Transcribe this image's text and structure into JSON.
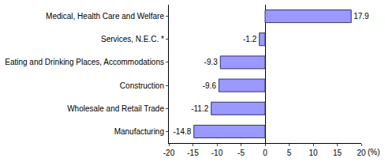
{
  "chart_data": {
    "type": "bar",
    "orientation": "horizontal",
    "categories": [
      "Medical, Health Care and Welfare",
      "Services, N.E.C. *",
      "Eating and Drinking Places, Accommodations",
      "Construction",
      "Wholesale and Retail Trade",
      "Manufacturing"
    ],
    "values": [
      17.9,
      -1.2,
      -9.3,
      -9.6,
      -11.2,
      -14.8
    ],
    "color": "#9999ff",
    "x_label": "(%)",
    "xlim": [
      -20,
      20
    ],
    "xticks": [
      -20,
      -15,
      -10,
      -5,
      0,
      5,
      10,
      15,
      20
    ],
    "grid": false,
    "data_labels": true
  }
}
